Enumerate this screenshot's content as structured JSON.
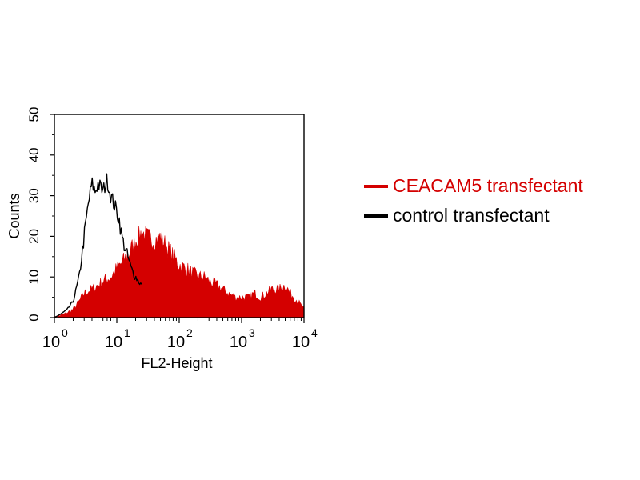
{
  "chart_data": {
    "type": "area",
    "title": "",
    "xlabel": "FL2-Height",
    "ylabel": "Counts",
    "x_scale": "log",
    "xlim": [
      1,
      10000
    ],
    "ylim": [
      0,
      50
    ],
    "x_ticks": [
      {
        "base": "10",
        "exp": "0",
        "value": 1
      },
      {
        "base": "10",
        "exp": "1",
        "value": 10
      },
      {
        "base": "10",
        "exp": "2",
        "value": 100
      },
      {
        "base": "10",
        "exp": "3",
        "value": 1000
      },
      {
        "base": "10",
        "exp": "4",
        "value": 10000
      }
    ],
    "y_ticks": [
      {
        "label": "0",
        "value": 0
      },
      {
        "label": "10",
        "value": 10
      },
      {
        "label": "20",
        "value": 20
      },
      {
        "label": "30",
        "value": 30
      },
      {
        "label": "40",
        "value": 40
      },
      {
        "label": "50",
        "value": 50
      }
    ],
    "grid": false,
    "legend_position": "right",
    "series": [
      {
        "name": "CEACAM5 transfectant",
        "color": "#d40000",
        "style": "filled",
        "x": [
          1,
          1.5,
          2,
          2.5,
          3,
          4,
          5,
          6,
          8,
          10,
          13,
          16,
          20,
          25,
          30,
          40,
          50,
          60,
          80,
          100,
          130,
          160,
          200,
          250,
          300,
          400,
          500,
          600,
          800,
          1000,
          1300,
          1600,
          2000,
          2500,
          3000,
          4000,
          5000,
          6000,
          8000,
          10000
        ],
        "values": [
          0,
          1,
          2,
          4,
          6,
          7,
          8,
          9,
          10,
          12,
          14,
          16,
          19,
          21,
          20,
          19,
          20,
          18,
          15,
          13,
          12,
          11,
          10,
          10,
          9,
          8,
          7,
          6,
          5,
          5,
          5,
          6,
          5,
          6,
          7,
          7,
          8,
          6,
          4,
          2
        ]
      },
      {
        "name": "control transfectant",
        "color": "#000000",
        "style": "line",
        "x": [
          1,
          1.3,
          1.6,
          2,
          2.5,
          3,
          3.5,
          4,
          4.5,
          5,
          6,
          7,
          8,
          9,
          10,
          11,
          12,
          13,
          15,
          17,
          20,
          25
        ],
        "values": [
          0,
          1,
          2,
          4,
          10,
          20,
          28,
          33,
          31,
          33,
          31,
          34,
          30,
          28,
          26,
          24,
          20,
          18,
          15,
          12,
          10,
          8
        ]
      }
    ]
  }
}
